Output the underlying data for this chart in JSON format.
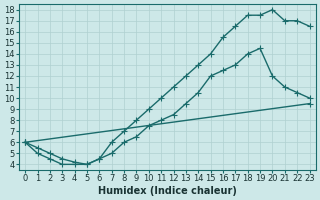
{
  "xlabel": "Humidex (Indice chaleur)",
  "xlim": [
    -0.5,
    23.5
  ],
  "ylim": [
    3.5,
    18.5
  ],
  "xticks": [
    0,
    1,
    2,
    3,
    4,
    5,
    6,
    7,
    8,
    9,
    10,
    11,
    12,
    13,
    14,
    15,
    16,
    17,
    18,
    19,
    20,
    21,
    22,
    23
  ],
  "yticks": [
    4,
    5,
    6,
    7,
    8,
    9,
    10,
    11,
    12,
    13,
    14,
    15,
    16,
    17,
    18
  ],
  "bg_color": "#cde8e8",
  "line_color": "#1a6b6b",
  "grid_color": "#b0d0d0",
  "line1_x": [
    0,
    1,
    2,
    3,
    4,
    5,
    6,
    7,
    8,
    9,
    10,
    11,
    12,
    13,
    14,
    15,
    16,
    17,
    18,
    19,
    20,
    21,
    22,
    23
  ],
  "line1_y": [
    6,
    5,
    4.5,
    4,
    4,
    4,
    4.5,
    6,
    7,
    8,
    9,
    10,
    11,
    12,
    13,
    14,
    15.5,
    16.5,
    17.5,
    17.5,
    18,
    17,
    17,
    16.5
  ],
  "line2_x": [
    0,
    1,
    2,
    3,
    4,
    5,
    6,
    7,
    8,
    9,
    10,
    11,
    12,
    13,
    14,
    15,
    16,
    17,
    18,
    19,
    20,
    21,
    22,
    23
  ],
  "line2_y": [
    6,
    5.5,
    5,
    4.5,
    4.2,
    4,
    4.5,
    5,
    6,
    6.5,
    7.5,
    8,
    8.5,
    9.5,
    10.5,
    12,
    12.5,
    13,
    14,
    14.5,
    12,
    11,
    10.5,
    10
  ],
  "line3_x": [
    0,
    23
  ],
  "line3_y": [
    6,
    9.5
  ],
  "marker": "+",
  "markersize": 4,
  "linewidth": 1.0,
  "xlabel_fontsize": 7,
  "tick_fontsize": 6
}
